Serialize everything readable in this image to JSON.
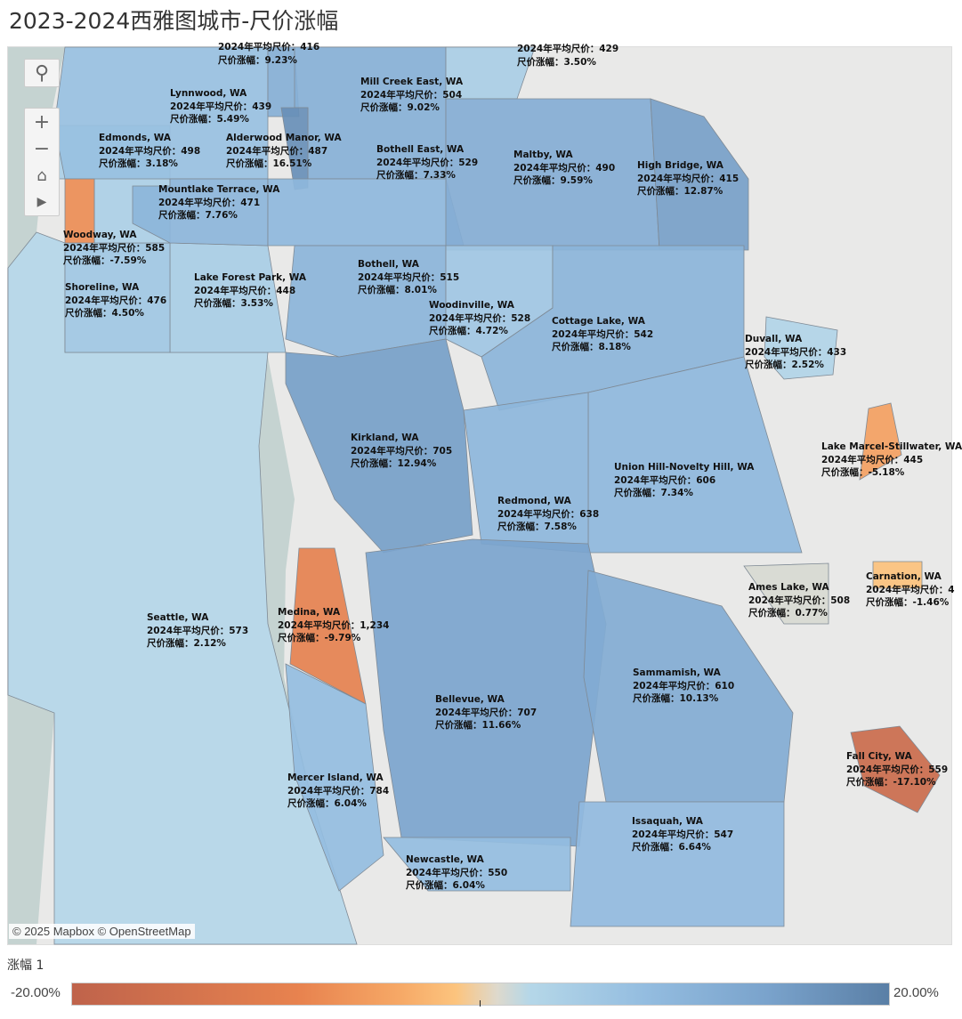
{
  "title": "2023-2024西雅图城市-尺价涨幅",
  "price_prefix": "2024年平均尺价：",
  "change_prefix": "尺价涨幅：",
  "map_controls": [
    "search-icon",
    "zoom-in-icon",
    "zoom-out-icon",
    "home-icon",
    "play-icon"
  ],
  "attribution": "© 2025 Mapbox  © OpenStreetMap",
  "legend": {
    "title": "涨幅 1",
    "min_label": "-20.00%",
    "max_label": "20.00%",
    "min": -20,
    "max": 20
  },
  "colors": {
    "water": "#c5d3d1",
    "land": "#e9e9e8",
    "neg_max": "#bf634b",
    "neutral": "#ded9cc",
    "pos_max": "#5a7fa6"
  },
  "cities": [
    {
      "name": "",
      "price": "416",
      "change": "9.23%",
      "value": 9.23
    },
    {
      "name": "",
      "price": "429",
      "change": "3.50%",
      "value": 3.5
    },
    {
      "name": "Mill Creek East, WA",
      "price": "504",
      "change": "9.02%",
      "value": 9.02
    },
    {
      "name": "Lynnwood, WA",
      "price": "439",
      "change": "5.49%",
      "value": 5.49
    },
    {
      "name": "Edmonds, WA",
      "price": "498",
      "change": "3.18%",
      "value": 3.18
    },
    {
      "name": "Alderwood Manor, WA",
      "price": "487",
      "change": "16.51%",
      "value": 16.51
    },
    {
      "name": "Bothell East, WA",
      "price": "529",
      "change": "7.33%",
      "value": 7.33
    },
    {
      "name": "Maltby, WA",
      "price": "490",
      "change": "9.59%",
      "value": 9.59
    },
    {
      "name": "High Bridge, WA",
      "price": "415",
      "change": "12.87%",
      "value": 12.87
    },
    {
      "name": "Woodway, WA",
      "price": "585",
      "change": "-7.59%",
      "value": -7.59
    },
    {
      "name": "Mountlake Terrace, WA",
      "price": "471",
      "change": "7.76%",
      "value": 7.76
    },
    {
      "name": "Bothell, WA",
      "price": "515",
      "change": "8.01%",
      "value": 8.01
    },
    {
      "name": "Lake Forest Park, WA",
      "price": "448",
      "change": "3.53%",
      "value": 3.53
    },
    {
      "name": "Shoreline, WA",
      "price": "476",
      "change": "4.50%",
      "value": 4.5
    },
    {
      "name": "Woodinville, WA",
      "price": "528",
      "change": "4.72%",
      "value": 4.72
    },
    {
      "name": "Cottage Lake, WA",
      "price": "542",
      "change": "8.18%",
      "value": 8.18
    },
    {
      "name": "Duvall, WA",
      "price": "433",
      "change": "2.52%",
      "value": 2.52
    },
    {
      "name": "Kirkland, WA",
      "price": "705",
      "change": "12.94%",
      "value": 12.94
    },
    {
      "name": "Lake Marcel-Stillwater, WA",
      "price": "445",
      "change": "-5.18%",
      "value": -5.18
    },
    {
      "name": "Union Hill-Novelty Hill, WA",
      "price": "606",
      "change": "7.34%",
      "value": 7.34
    },
    {
      "name": "Redmond, WA",
      "price": "638",
      "change": "7.58%",
      "value": 7.58
    },
    {
      "name": "Carnation, WA",
      "price": "4",
      "change": "-1.46%",
      "value": -1.46
    },
    {
      "name": "Ames Lake, WA",
      "price": "508",
      "change": "0.77%",
      "value": 0.77
    },
    {
      "name": "Seattle, WA",
      "price": "573",
      "change": "2.12%",
      "value": 2.12
    },
    {
      "name": "Medina, WA",
      "price": "1,234",
      "change": "-9.79%",
      "value": -9.79
    },
    {
      "name": "Sammamish, WA",
      "price": "610",
      "change": "10.13%",
      "value": 10.13
    },
    {
      "name": "Bellevue, WA",
      "price": "707",
      "change": "11.66%",
      "value": 11.66
    },
    {
      "name": "Fall City, WA",
      "price": "559",
      "change": "-17.10%",
      "value": -17.1
    },
    {
      "name": "Mercer Island, WA",
      "price": "784",
      "change": "6.04%",
      "value": 6.04
    },
    {
      "name": "Issaquah, WA",
      "price": "547",
      "change": "6.64%",
      "value": 6.64
    },
    {
      "name": "Newcastle, WA",
      "price": "550",
      "change": "6.04%",
      "value": 6.04
    }
  ]
}
